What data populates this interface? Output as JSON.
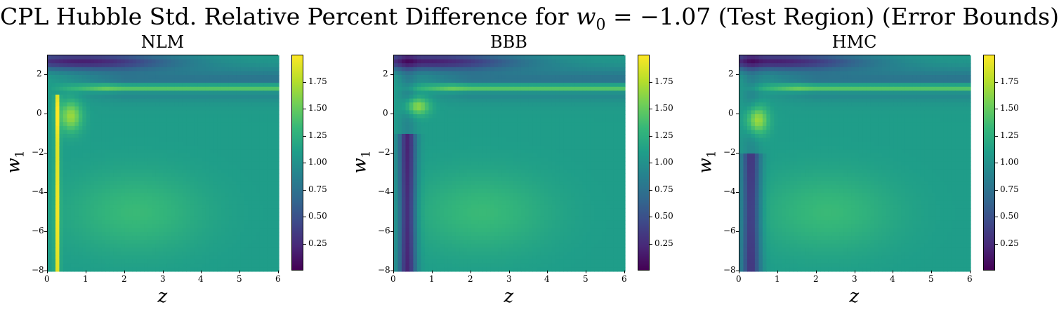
{
  "suptitle_prefix": "CPL Hubble Std. Relative Percent Difference for ",
  "suptitle_var": "w",
  "suptitle_sub": "0",
  "suptitle_eq": " = −1.07 (Test Region) (Error Bounds)",
  "chart_data": [
    {
      "type": "heatmap",
      "title": "NLM",
      "xlabel": "z",
      "ylabel": "w1",
      "xlim": [
        0,
        6
      ],
      "ylim": [
        -8,
        3
      ],
      "xticks": [
        "0",
        "1",
        "2",
        "3",
        "4",
        "5",
        "6"
      ],
      "yticks": [
        "−8",
        "−6",
        "−4",
        "−2",
        "0",
        "2"
      ],
      "colorbar_range": [
        0,
        2.0
      ],
      "colorbar_ticks": [
        "0.25",
        "0.50",
        "0.75",
        "1.00",
        "1.25",
        "1.50",
        "1.75"
      ],
      "colormap": "viridis"
    },
    {
      "type": "heatmap",
      "title": "BBB",
      "xlabel": "z",
      "ylabel": "w1",
      "xlim": [
        0,
        6
      ],
      "ylim": [
        -8,
        3
      ],
      "xticks": [
        "0",
        "1",
        "2",
        "3",
        "4",
        "5",
        "6"
      ],
      "yticks": [
        "−8",
        "−6",
        "−4",
        "−2",
        "0",
        "2"
      ],
      "colorbar_range": [
        0,
        2.0
      ],
      "colorbar_ticks": [
        "0.25",
        "0.50",
        "0.75",
        "1.00",
        "1.25",
        "1.50",
        "1.75"
      ],
      "colormap": "viridis"
    },
    {
      "type": "heatmap",
      "title": "HMC",
      "xlabel": "z",
      "ylabel": "w1",
      "xlim": [
        0,
        6
      ],
      "ylim": [
        -8,
        3
      ],
      "xticks": [
        "0",
        "1",
        "2",
        "3",
        "4",
        "5",
        "6"
      ],
      "yticks": [
        "−8",
        "−6",
        "−4",
        "−2",
        "0",
        "2"
      ],
      "colorbar_range": [
        0,
        2.0
      ],
      "colorbar_ticks": [
        "0.25",
        "0.50",
        "0.75",
        "1.00",
        "1.25",
        "1.50",
        "1.75"
      ],
      "colormap": "viridis"
    }
  ]
}
